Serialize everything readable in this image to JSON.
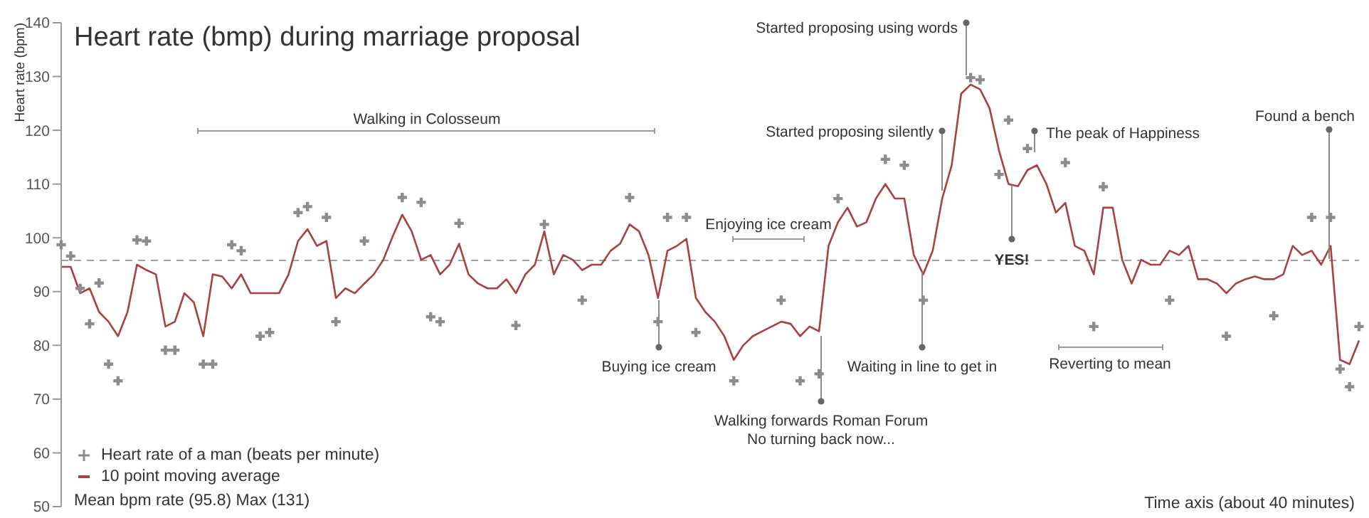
{
  "chart_data": {
    "type": "line",
    "title": "Heart rate (bmp) during marriage proposal",
    "ylabel": "Heart rate (bpm)",
    "xlabel": "Time axis (about 40 minutes)",
    "categories": [
      null,
      null,
      null,
      null,
      null,
      null,
      null,
      null,
      null,
      null,
      null,
      null,
      null,
      null,
      null,
      null,
      null,
      null,
      null,
      null,
      null,
      null,
      null,
      null,
      null,
      null,
      null,
      null,
      null,
      null,
      null,
      null,
      null,
      null,
      null,
      null,
      null,
      null,
      null,
      null,
      null,
      null,
      null,
      null,
      null,
      null,
      null,
      null,
      null,
      null,
      null,
      null,
      null,
      null,
      null,
      null,
      null,
      null,
      null,
      null,
      null,
      null,
      null,
      null,
      null,
      null,
      null,
      null,
      null,
      null,
      null,
      null,
      null,
      null,
      null,
      null,
      null,
      null,
      null,
      null,
      null,
      null,
      null,
      null,
      null,
      null,
      null,
      null,
      null,
      null,
      null,
      null,
      null,
      null,
      null,
      null,
      null,
      null,
      null,
      null,
      null,
      null,
      null,
      null,
      null,
      null,
      null,
      null,
      null,
      null,
      null,
      null,
      null,
      null,
      null,
      null,
      null,
      null,
      null,
      null,
      null,
      null,
      null,
      null,
      null,
      null,
      null,
      null,
      null,
      null,
      null,
      null,
      null,
      null,
      null,
      null,
      null,
      null
    ],
    "ylim": [
      50,
      140
    ],
    "yticks": [
      50,
      60,
      70,
      80,
      90,
      100,
      110,
      120,
      130,
      140
    ],
    "tick_labels": "y",
    "legend": "bottom left",
    "series": [
      {
        "name": "Heart rate of a man (beats per minute)",
        "type": "scatter",
        "marker": "cross",
        "color": "#8c8c8c",
        "values": [
          98.7,
          96.6,
          90.6,
          84.0,
          91.6,
          76.5,
          73.4,
          null,
          99.6,
          99.4,
          null,
          79.1,
          79.1,
          null,
          null,
          76.5,
          76.5,
          null,
          98.7,
          97.6,
          null,
          81.7,
          82.4,
          null,
          null,
          104.7,
          105.8,
          null,
          103.8,
          84.4,
          null,
          null,
          99.4,
          null,
          null,
          null,
          107.5,
          null,
          106.6,
          85.3,
          84.4,
          null,
          102.7,
          null,
          null,
          null,
          null,
          null,
          83.7,
          null,
          null,
          102.5,
          null,
          null,
          null,
          88.4,
          null,
          null,
          null,
          null,
          107.5,
          null,
          null,
          84.4,
          103.8,
          null,
          103.8,
          82.4,
          null,
          null,
          null,
          73.4,
          null,
          null,
          null,
          null,
          88.4,
          null,
          73.4,
          null,
          74.7,
          null,
          107.3,
          null,
          null,
          null,
          null,
          114.6,
          null,
          113.5,
          null,
          88.4,
          null,
          null,
          null,
          null,
          129.8,
          129.4,
          null,
          111.8,
          121.9,
          null,
          116.6,
          null,
          null,
          null,
          114.0,
          null,
          null,
          83.5,
          109.5,
          null,
          null,
          null,
          null,
          null,
          null,
          88.4,
          null,
          null,
          null,
          null,
          null,
          81.7,
          null,
          null,
          null,
          null,
          85.5,
          null,
          null,
          null,
          103.8,
          null,
          103.8,
          75.6,
          72.3,
          83.5
        ]
      },
      {
        "name": "10 point moving average",
        "marker": "none",
        "color": "#a8413f",
        "values": [
          94.6,
          94.6,
          89.7,
          90.6,
          86.2,
          84.4,
          81.7,
          86.2,
          95,
          94,
          93.2,
          83.5,
          84.4,
          89.7,
          88,
          81.7,
          93.2,
          92.8,
          90.6,
          93.2,
          89.7,
          89.7,
          89.7,
          89.7,
          93.2,
          99.4,
          101.6,
          98.5,
          99.4,
          88.8,
          90.6,
          89.7,
          91.5,
          93.2,
          95.9,
          100.3,
          104.3,
          101.2,
          95.9,
          96.8,
          93.2,
          95,
          98.9,
          93.2,
          91.5,
          90.6,
          90.6,
          92.3,
          89.7,
          93.2,
          95,
          101.2,
          93.2,
          96.8,
          95.9,
          94,
          95,
          95,
          97.6,
          98.9,
          102.5,
          101.2,
          96.8,
          88.8,
          97.6,
          98.5,
          99.8,
          88.8,
          86.2,
          84.4,
          81.7,
          77.3,
          80,
          81.7,
          82.6,
          83.5,
          84.4,
          84,
          81.7,
          83.5,
          82.6,
          98.5,
          102.9,
          105.6,
          102.1,
          102.9,
          107.3,
          110,
          107.3,
          107.3,
          96.8,
          93.2,
          97.6,
          107.3,
          113.5,
          126.8,
          128.5,
          127.6,
          124.1,
          116.2,
          110,
          109.6,
          112.6,
          113.5,
          110,
          104.7,
          106.5,
          98.5,
          97.6,
          93.2,
          105.6,
          105.6,
          95.9,
          91.5,
          95.9,
          95,
          95,
          97.6,
          96.8,
          98.5,
          92.3,
          92.3,
          91.5,
          89.7,
          91.5,
          92.3,
          92.8,
          92.3,
          92.3,
          93.2,
          98.5,
          96.8,
          97.6,
          95,
          98.5,
          77.3,
          76.5,
          80.9
        ]
      }
    ],
    "ref_lines": [
      {
        "axis": "y",
        "value": 95.8,
        "color": "#a0a0a0",
        "line_style": "dashed"
      }
    ],
    "annotations": [
      "Mean bpm rate (95.8) Max (131)",
      "Walking in Colosseum",
      "Enjoying ice cream",
      "Buying ice cream",
      "Walking forwards Roman Forum\nNo turning back now...",
      "Waiting in line to get in",
      "Started proposing silently",
      "Started proposing using words",
      "The peak of Happiness",
      "YES!",
      "Reverting to mean",
      "Found a bench"
    ]
  }
}
